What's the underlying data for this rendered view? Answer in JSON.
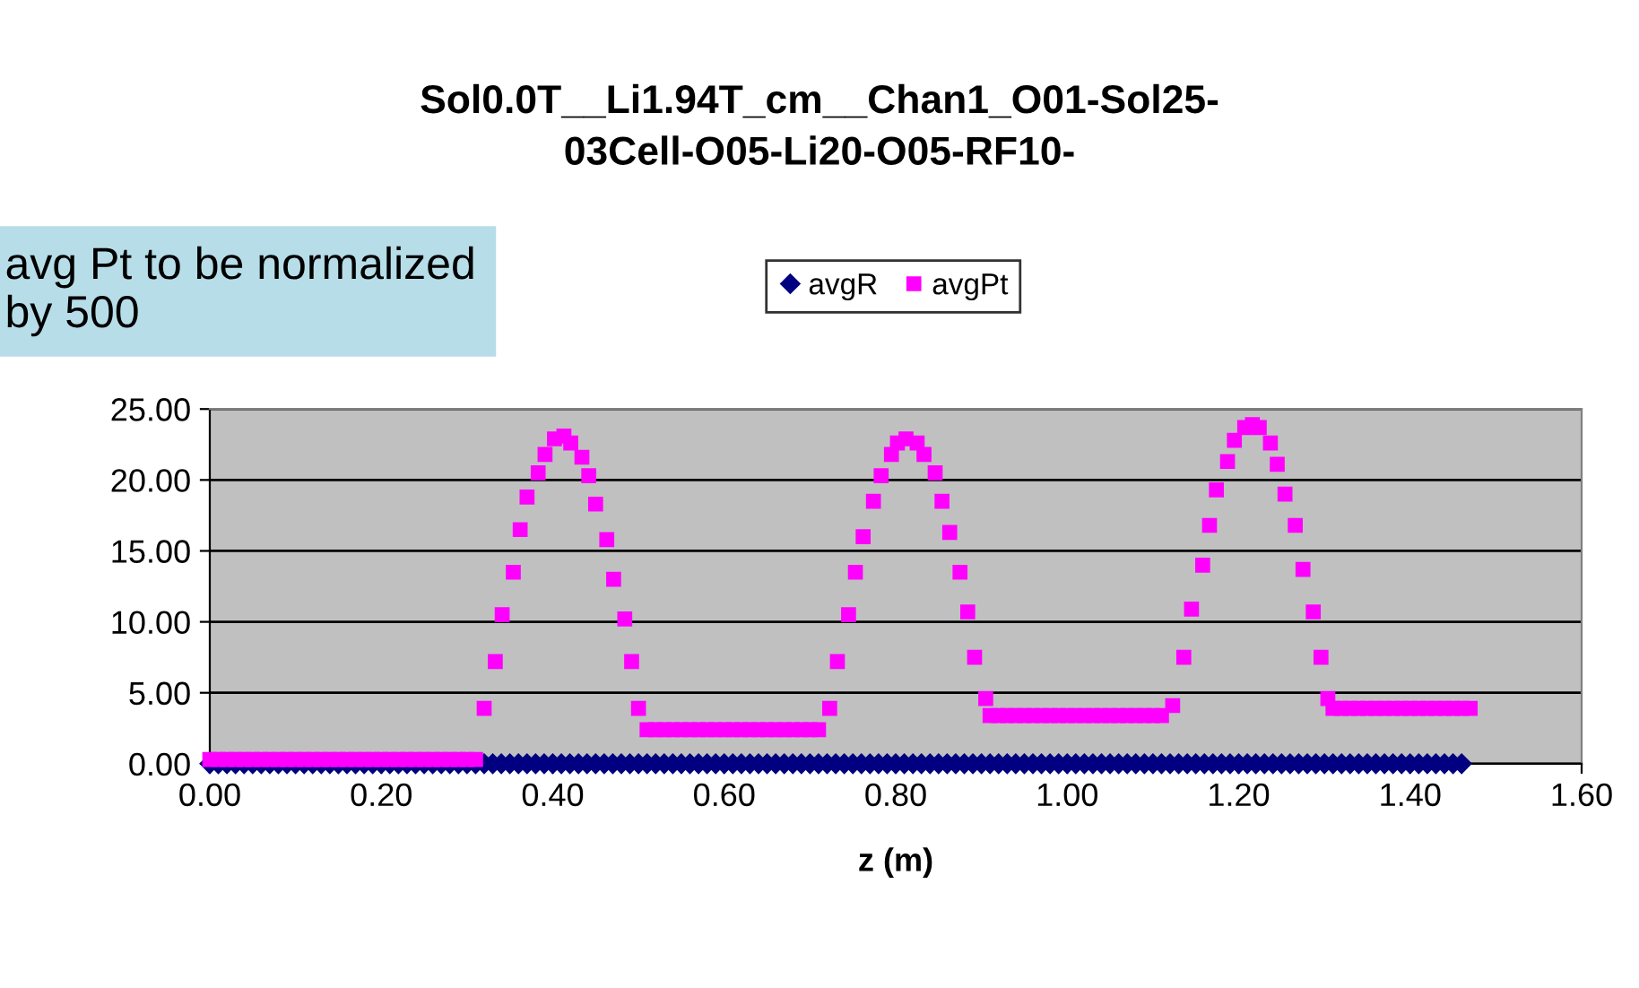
{
  "chart_data": {
    "type": "scatter",
    "title": "Sol0.0T__Li1.94T_cm__Chan1_O01-Sol25-\n03Cell-O05-Li20-O05-RF10-",
    "xlabel": "z (m)",
    "annotations": [
      "avg Pt to be normalized\nby 500"
    ],
    "xlim": [
      0,
      1.6
    ],
    "ylim": [
      0,
      25
    ],
    "xticks": [
      {
        "value": 0,
        "label": "0.00"
      },
      {
        "value": 0.2,
        "label": "0.20"
      },
      {
        "value": 0.4,
        "label": "0.40"
      },
      {
        "value": 0.6,
        "label": "0.60"
      },
      {
        "value": 0.8,
        "label": "0.80"
      },
      {
        "value": 1.0,
        "label": "1.00"
      },
      {
        "value": 1.2,
        "label": "1.20"
      },
      {
        "value": 1.4,
        "label": "1.40"
      },
      {
        "value": 1.6,
        "label": "1.60"
      }
    ],
    "yticks": [
      {
        "value": 0,
        "label": "0.00"
      },
      {
        "value": 5,
        "label": "5.00"
      },
      {
        "value": 10,
        "label": "10.00"
      },
      {
        "value": 15,
        "label": "15.00"
      },
      {
        "value": 20,
        "label": "20.00"
      },
      {
        "value": 25,
        "label": "25.00"
      }
    ],
    "grid": "y",
    "legend": "top",
    "series": [
      {
        "name": "avgR",
        "color": "#000080",
        "marker": "diamond",
        "x": [
          0.0,
          0.01,
          0.02,
          0.03,
          0.04,
          0.05,
          0.06,
          0.07,
          0.08,
          0.09,
          0.1,
          0.11,
          0.12,
          0.13,
          0.14,
          0.15,
          0.16,
          0.17,
          0.18,
          0.19,
          0.2,
          0.21,
          0.22,
          0.23,
          0.24,
          0.25,
          0.26,
          0.27,
          0.28,
          0.29,
          0.3,
          0.31,
          0.32,
          0.33,
          0.34,
          0.35,
          0.36,
          0.37,
          0.38,
          0.39,
          0.4,
          0.41,
          0.42,
          0.43,
          0.44,
          0.45,
          0.46,
          0.47,
          0.48,
          0.49,
          0.5,
          0.51,
          0.52,
          0.53,
          0.54,
          0.55,
          0.56,
          0.57,
          0.58,
          0.59,
          0.6,
          0.61,
          0.62,
          0.63,
          0.64,
          0.65,
          0.66,
          0.67,
          0.68,
          0.69,
          0.7,
          0.71,
          0.72,
          0.73,
          0.74,
          0.75,
          0.76,
          0.77,
          0.78,
          0.79,
          0.8,
          0.81,
          0.82,
          0.83,
          0.84,
          0.85,
          0.86,
          0.87,
          0.88,
          0.89,
          0.9,
          0.91,
          0.92,
          0.93,
          0.94,
          0.95,
          0.96,
          0.97,
          0.98,
          0.99,
          1.0,
          1.01,
          1.02,
          1.03,
          1.04,
          1.05,
          1.06,
          1.07,
          1.08,
          1.09,
          1.1,
          1.11,
          1.12,
          1.13,
          1.14,
          1.15,
          1.16,
          1.17,
          1.18,
          1.19,
          1.2,
          1.21,
          1.22,
          1.23,
          1.24,
          1.25,
          1.26,
          1.27,
          1.28,
          1.29,
          1.3,
          1.31,
          1.32,
          1.33,
          1.34,
          1.35,
          1.36,
          1.37,
          1.38,
          1.39,
          1.4,
          1.41,
          1.42,
          1.43,
          1.44,
          1.45,
          1.46
        ],
        "values": [
          0,
          0,
          0,
          0,
          0,
          0,
          0,
          0,
          0,
          0,
          0,
          0,
          0,
          0,
          0,
          0,
          0,
          0,
          0,
          0,
          0,
          0,
          0,
          0,
          0,
          0,
          0,
          0,
          0,
          0,
          0,
          0,
          0,
          0,
          0,
          0,
          0,
          0,
          0,
          0,
          0,
          0,
          0,
          0,
          0,
          0,
          0,
          0,
          0,
          0,
          0,
          0,
          0,
          0,
          0,
          0,
          0,
          0,
          0,
          0,
          0,
          0,
          0,
          0,
          0,
          0,
          0,
          0,
          0,
          0,
          0,
          0,
          0,
          0,
          0,
          0,
          0,
          0,
          0,
          0,
          0,
          0,
          0,
          0,
          0,
          0,
          0,
          0,
          0,
          0,
          0,
          0,
          0,
          0,
          0,
          0,
          0,
          0,
          0,
          0,
          0,
          0,
          0,
          0,
          0,
          0,
          0,
          0,
          0,
          0,
          0,
          0,
          0,
          0,
          0,
          0,
          0,
          0,
          0,
          0,
          0,
          0,
          0,
          0,
          0,
          0,
          0,
          0,
          0,
          0,
          0,
          0,
          0,
          0,
          0,
          0,
          0,
          0,
          0,
          0,
          0,
          0,
          0,
          0,
          0,
          0,
          0
        ]
      },
      {
        "name": "avgPt",
        "color": "#ff00ff",
        "marker": "square",
        "x": [
          0.0,
          0.01,
          0.02,
          0.03,
          0.04,
          0.05,
          0.06,
          0.07,
          0.08,
          0.09,
          0.1,
          0.11,
          0.12,
          0.13,
          0.14,
          0.15,
          0.16,
          0.17,
          0.18,
          0.19,
          0.2,
          0.21,
          0.22,
          0.23,
          0.24,
          0.25,
          0.26,
          0.27,
          0.28,
          0.29,
          0.3,
          0.31,
          0.32,
          0.333,
          0.341,
          0.354,
          0.362,
          0.37,
          0.383,
          0.391,
          0.402,
          0.413,
          0.421,
          0.434,
          0.442,
          0.45,
          0.463,
          0.471,
          0.484,
          0.492,
          0.5,
          0.51,
          0.52,
          0.53,
          0.54,
          0.55,
          0.56,
          0.57,
          0.58,
          0.59,
          0.6,
          0.61,
          0.62,
          0.63,
          0.64,
          0.65,
          0.66,
          0.67,
          0.68,
          0.69,
          0.7,
          0.71,
          0.723,
          0.732,
          0.745,
          0.753,
          0.762,
          0.774,
          0.783,
          0.795,
          0.802,
          0.812,
          0.825,
          0.833,
          0.846,
          0.854,
          0.863,
          0.875,
          0.884,
          0.892,
          0.905,
          0.91,
          0.92,
          0.93,
          0.94,
          0.95,
          0.96,
          0.97,
          0.98,
          0.99,
          1.0,
          1.01,
          1.02,
          1.03,
          1.04,
          1.05,
          1.06,
          1.07,
          1.08,
          1.09,
          1.1,
          1.11,
          1.123,
          1.136,
          1.145,
          1.158,
          1.166,
          1.174,
          1.187,
          1.195,
          1.207,
          1.216,
          1.224,
          1.237,
          1.245,
          1.254,
          1.266,
          1.275,
          1.287,
          1.296,
          1.304,
          1.31,
          1.32,
          1.33,
          1.34,
          1.35,
          1.36,
          1.37,
          1.38,
          1.39,
          1.4,
          1.41,
          1.42,
          1.43,
          1.44,
          1.45,
          1.46,
          1.47
        ],
        "values": [
          0.3,
          0.3,
          0.3,
          0.3,
          0.3,
          0.3,
          0.3,
          0.3,
          0.3,
          0.3,
          0.3,
          0.3,
          0.3,
          0.3,
          0.3,
          0.3,
          0.3,
          0.3,
          0.3,
          0.3,
          0.3,
          0.3,
          0.3,
          0.3,
          0.3,
          0.3,
          0.3,
          0.3,
          0.3,
          0.3,
          0.3,
          0.3,
          3.9,
          7.2,
          10.5,
          13.5,
          16.5,
          18.8,
          20.5,
          21.8,
          22.9,
          23.1,
          22.6,
          21.6,
          20.3,
          18.3,
          15.8,
          13.0,
          10.2,
          7.2,
          3.9,
          2.4,
          2.4,
          2.4,
          2.4,
          2.4,
          2.4,
          2.4,
          2.4,
          2.4,
          2.4,
          2.4,
          2.4,
          2.4,
          2.4,
          2.4,
          2.4,
          2.4,
          2.4,
          2.4,
          2.4,
          2.4,
          3.9,
          7.2,
          10.5,
          13.5,
          16.0,
          18.5,
          20.3,
          21.8,
          22.6,
          22.9,
          22.6,
          21.8,
          20.5,
          18.5,
          16.3,
          13.5,
          10.7,
          7.5,
          4.6,
          3.4,
          3.4,
          3.4,
          3.4,
          3.4,
          3.4,
          3.4,
          3.4,
          3.4,
          3.4,
          3.4,
          3.4,
          3.4,
          3.4,
          3.4,
          3.4,
          3.4,
          3.4,
          3.4,
          3.4,
          3.4,
          4.1,
          7.5,
          10.9,
          14.0,
          16.8,
          19.3,
          21.3,
          22.8,
          23.7,
          23.9,
          23.7,
          22.6,
          21.1,
          19.0,
          16.8,
          13.7,
          10.7,
          7.5,
          4.6,
          3.9,
          3.9,
          3.9,
          3.9,
          3.9,
          3.9,
          3.9,
          3.9,
          3.9,
          3.9,
          3.9,
          3.9,
          3.9,
          3.9,
          3.9,
          3.9,
          3.9
        ]
      }
    ]
  }
}
